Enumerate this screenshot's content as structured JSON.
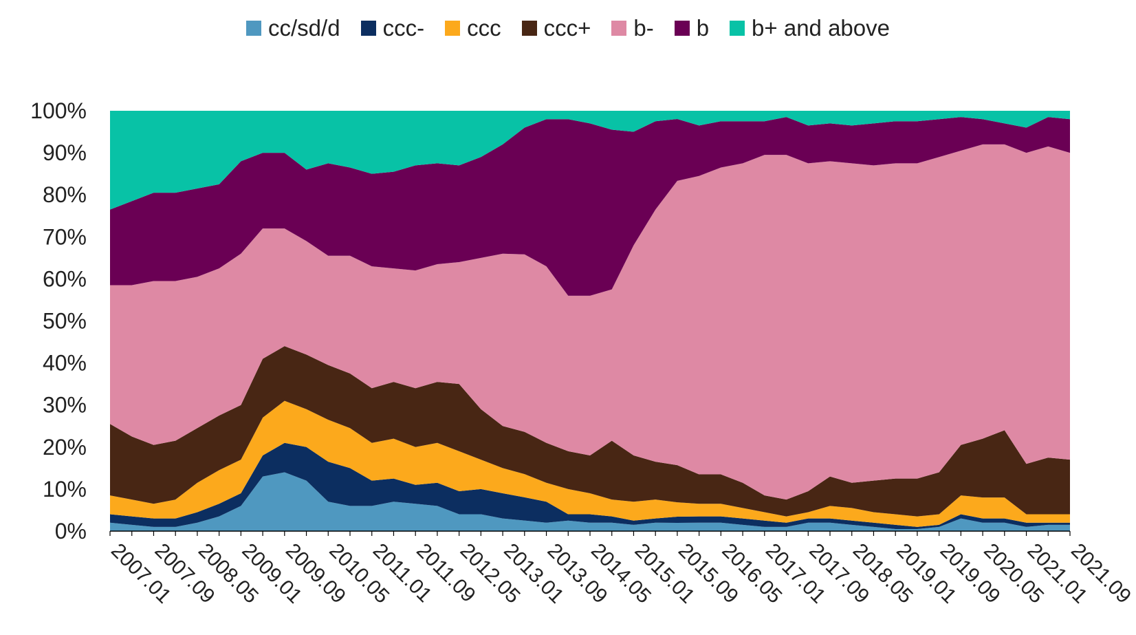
{
  "chart_data": {
    "type": "area",
    "stacked": true,
    "normalized_percent": true,
    "legend_position": "top",
    "grid": false,
    "ylim": [
      0,
      100
    ],
    "y_ticks": [
      "0%",
      "10%",
      "20%",
      "30%",
      "40%",
      "50%",
      "60%",
      "70%",
      "80%",
      "90%",
      "100%"
    ],
    "x_tick_labels": [
      "2007.01",
      "2007.09",
      "2008.05",
      "2009.01",
      "2009.09",
      "2010.05",
      "2011.01",
      "2011.09",
      "2012.05",
      "2013.01",
      "2013.09",
      "2014.05",
      "2015.01",
      "2015.09",
      "2016.05",
      "2017.01",
      "2017.09",
      "2018.05",
      "2019.01",
      "2019.09",
      "2020.05",
      "2021.01",
      "2021.09"
    ],
    "x": [
      "2007.01",
      "2007.05",
      "2007.09",
      "2008.01",
      "2008.05",
      "2008.09",
      "2009.01",
      "2009.05",
      "2009.09",
      "2010.01",
      "2010.05",
      "2010.09",
      "2011.01",
      "2011.05",
      "2011.09",
      "2012.01",
      "2012.05",
      "2012.09",
      "2013.01",
      "2013.05",
      "2013.09",
      "2014.01",
      "2014.05",
      "2014.09",
      "2015.01",
      "2015.05",
      "2015.09",
      "2016.01",
      "2016.05",
      "2016.09",
      "2017.01",
      "2017.05",
      "2017.09",
      "2018.01",
      "2018.05",
      "2018.09",
      "2019.01",
      "2019.05",
      "2019.09",
      "2020.01",
      "2020.05",
      "2020.09",
      "2021.01",
      "2021.05",
      "2021.09"
    ],
    "series": [
      {
        "name": "cc/sd/d",
        "color": "#4f98c0",
        "values": [
          2,
          1.5,
          1,
          1,
          2,
          3.5,
          6,
          13,
          14,
          12,
          7,
          6,
          6,
          7,
          6.5,
          6,
          4,
          4,
          3,
          2.5,
          2,
          2.5,
          2,
          2,
          1.5,
          2,
          2,
          2,
          2,
          1.5,
          1,
          1,
          2,
          2,
          1.5,
          1,
          0.5,
          0.5,
          1,
          3,
          2,
          2,
          1,
          1.5,
          1.5
        ]
      },
      {
        "name": "ccc-",
        "color": "#0c2e60",
        "values": [
          2,
          2,
          2,
          2,
          2.5,
          3,
          3,
          5,
          7,
          8,
          9.5,
          9,
          6,
          5.5,
          4.5,
          5.5,
          5.5,
          6,
          6,
          5.5,
          5,
          1.5,
          2,
          1.5,
          1,
          1,
          1.5,
          1.5,
          1.5,
          1.5,
          1.5,
          1,
          1,
          1,
          1,
          1,
          1,
          0.5,
          0.5,
          1,
          1,
          1,
          1,
          0.5,
          0.5
        ]
      },
      {
        "name": "ccc",
        "color": "#fca91c",
        "values": [
          4.5,
          4,
          3.5,
          4.5,
          7,
          8,
          8,
          9,
          10,
          9,
          10,
          9.5,
          9,
          9.5,
          9,
          9.5,
          9.5,
          7,
          6,
          5.5,
          4.5,
          6,
          5,
          4,
          4.5,
          4.5,
          3.5,
          3,
          3,
          2.5,
          2,
          1.5,
          1.5,
          3,
          3,
          2.5,
          2.5,
          2.5,
          2.5,
          4.5,
          5,
          5,
          2,
          2,
          2
        ]
      },
      {
        "name": "ccc+",
        "color": "#482614",
        "values": [
          17,
          15,
          14,
          14,
          13,
          13,
          13,
          14,
          13,
          13,
          13,
          13,
          13,
          13.5,
          14,
          14.5,
          16,
          12,
          10,
          10,
          9.5,
          9,
          9,
          14,
          11,
          9,
          9,
          7,
          7,
          6,
          4,
          4,
          5,
          7,
          6,
          7.5,
          8.5,
          9,
          10,
          12,
          14,
          16,
          12,
          13.5,
          13
        ]
      },
      {
        "name": "b-",
        "color": "#de89a4",
        "values": [
          33,
          36,
          39,
          38,
          36,
          35,
          36,
          31,
          28,
          27,
          26,
          28,
          29,
          27,
          28,
          28,
          29,
          36,
          41,
          42,
          42,
          37,
          38,
          36,
          50,
          60,
          69,
          71,
          73,
          76,
          81,
          82,
          78,
          75,
          76,
          75,
          75,
          75,
          75,
          70,
          70,
          68,
          74,
          74,
          73
        ]
      },
      {
        "name": "b",
        "color": "#6a0054",
        "values": [
          18,
          20,
          21,
          21,
          21,
          20,
          22,
          18,
          18,
          17,
          22,
          21,
          22,
          23,
          25,
          24,
          23,
          24,
          26,
          30,
          35,
          42,
          41,
          38,
          27,
          21,
          15,
          12,
          11,
          10,
          8,
          9,
          9,
          9,
          9,
          10,
          10,
          10,
          9,
          8,
          6,
          5,
          6,
          7,
          8
        ]
      },
      {
        "name": "b+ and above",
        "color": "#08c2a6",
        "values": [
          23.5,
          21.5,
          19.5,
          19.5,
          18.5,
          17.5,
          12,
          10,
          10,
          14,
          12.5,
          13.5,
          15,
          14.5,
          13,
          12.5,
          13,
          11,
          8,
          4,
          2,
          2,
          3,
          4.5,
          5,
          2.5,
          2,
          3.5,
          2.5,
          2.5,
          2.5,
          1.5,
          3.5,
          3,
          3.5,
          3,
          2.5,
          2.5,
          2,
          1.5,
          2,
          3,
          4,
          1.5,
          2
        ]
      }
    ]
  }
}
